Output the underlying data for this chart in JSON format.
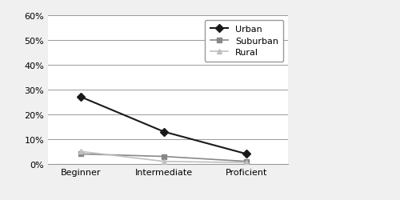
{
  "categories": [
    "Beginner",
    "Intermediate",
    "Proficient"
  ],
  "urban": [
    0.27,
    0.13,
    0.04
  ],
  "suburban": [
    0.04,
    0.03,
    0.01
  ],
  "rural": [
    0.05,
    0.01,
    0.005
  ],
  "urban_color": "#1a1a1a",
  "suburban_color": "#888888",
  "rural_color": "#c0c0c0",
  "ylim": [
    0,
    0.6
  ],
  "yticks": [
    0.0,
    0.1,
    0.2,
    0.3,
    0.4,
    0.5,
    0.6
  ],
  "background_color": "#f0f0f0",
  "plot_bg_color": "#ffffff",
  "legend_labels": [
    "Urban",
    "Suburban",
    "Rural"
  ],
  "grid_color": "#999999",
  "border_color": "#999999"
}
